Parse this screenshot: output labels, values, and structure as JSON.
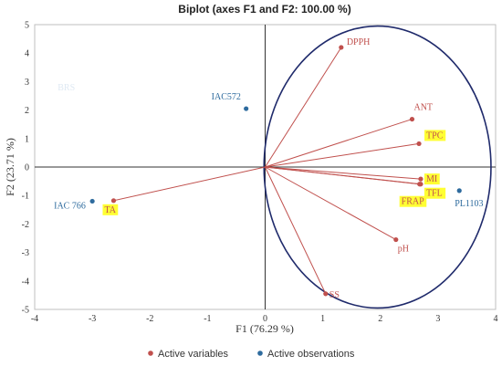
{
  "chart_data": {
    "type": "scatter",
    "title": "Biplot (axes F1 and F2: 100.00 %)",
    "xlabel": "F1 (76.29 %)",
    "ylabel": "F2 (23.71 %)",
    "xlim": [
      -4,
      4
    ],
    "ylim": [
      -5,
      5
    ],
    "x_ticks": [
      "-4",
      "-3",
      "-2",
      "-1",
      "0",
      "1",
      "2",
      "3",
      "4"
    ],
    "y_ticks": [
      "-5",
      "-4",
      "-3",
      "-2",
      "-1",
      "0",
      "1",
      "2",
      "3",
      "4",
      "5"
    ],
    "legend": {
      "placement": "bottom",
      "items": [
        "Active variables",
        "Active observations"
      ]
    },
    "colors": {
      "variables": "#c0504d",
      "observations": "#2e6b9e",
      "ellipse": "#1f2a6b",
      "highlight": "#ffff33"
    },
    "variables": [
      {
        "label": "DPPH",
        "x": 1.32,
        "y": 4.2,
        "highlight": false
      },
      {
        "label": "ANT",
        "x": 2.55,
        "y": 1.68,
        "highlight": false
      },
      {
        "label": "TPC",
        "x": 2.67,
        "y": 0.82,
        "highlight": true
      },
      {
        "label": "MI",
        "x": 2.7,
        "y": -0.42,
        "highlight": true
      },
      {
        "label": "TFL",
        "x": 2.7,
        "y": -0.6,
        "highlight": true
      },
      {
        "label": "FRAP",
        "x": 2.68,
        "y": -0.6,
        "highlight": true
      },
      {
        "label": "pH",
        "x": 2.27,
        "y": -2.55,
        "highlight": false
      },
      {
        "label": "SS",
        "x": 1.05,
        "y": -4.45,
        "highlight": false
      },
      {
        "label": "TA",
        "x": -2.63,
        "y": -1.18,
        "highlight": true
      }
    ],
    "observations": [
      {
        "label": "IAC572",
        "x": -0.33,
        "y": 2.05
      },
      {
        "label": "IAC 766",
        "x": -3.0,
        "y": -1.2
      },
      {
        "label": "PL1103",
        "x": 3.37,
        "y": -0.83
      }
    ],
    "faint_labels": [
      {
        "label": "BRS",
        "x": -3.6,
        "y": 2.7
      }
    ],
    "ellipse": {
      "cx": 1.95,
      "cy": 0,
      "rx": 1.97,
      "ry": 4.95
    }
  }
}
